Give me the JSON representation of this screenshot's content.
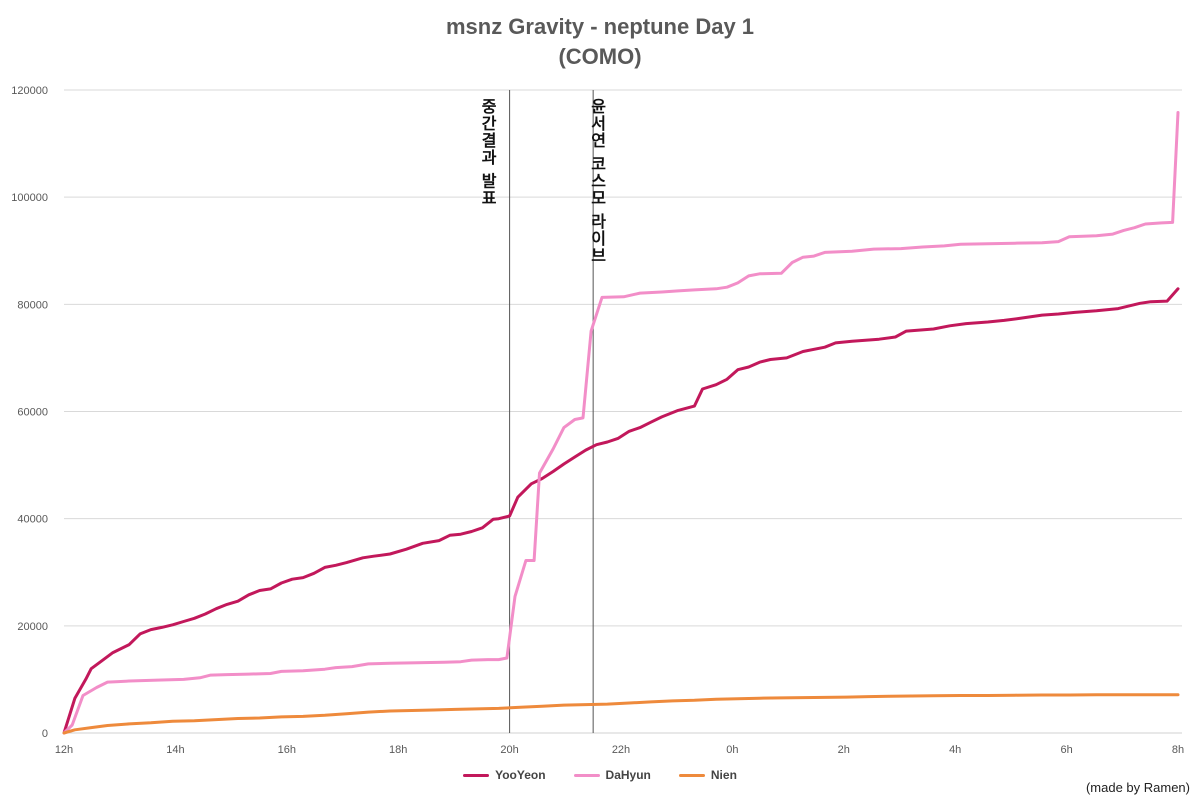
{
  "chart_data": {
    "type": "line",
    "title_lines": [
      "msnz Gravity - neptune Day 1",
      "(COMO)"
    ],
    "xlabel": "",
    "ylabel": "",
    "x_range_hours": [
      0,
      20
    ],
    "x_ticks": [
      {
        "h": 0,
        "label": "12h"
      },
      {
        "h": 2,
        "label": "14h"
      },
      {
        "h": 4,
        "label": "16h"
      },
      {
        "h": 6,
        "label": "18h"
      },
      {
        "h": 8,
        "label": "20h"
      },
      {
        "h": 10,
        "label": "22h"
      },
      {
        "h": 12,
        "label": "0h"
      },
      {
        "h": 14,
        "label": "2h"
      },
      {
        "h": 16,
        "label": "4h"
      },
      {
        "h": 18,
        "label": "6h"
      },
      {
        "h": 20,
        "label": "8h"
      }
    ],
    "ylim": [
      0,
      120000
    ],
    "y_ticks": [
      0,
      20000,
      40000,
      60000,
      80000,
      100000,
      120000
    ],
    "grid": true,
    "legend_position": "bottom",
    "annotations": [
      {
        "h": 8.0,
        "text": "중간결과 발표"
      },
      {
        "h": 9.5,
        "text": "윤서연 코스모 라이브"
      }
    ],
    "series": [
      {
        "name": "YooYeon",
        "color": "#C2185B",
        "points": [
          [
            0,
            0
          ],
          [
            0.2,
            6500
          ],
          [
            0.4,
            10000
          ],
          [
            0.5,
            12000
          ],
          [
            0.7,
            13500
          ],
          [
            0.9,
            15000
          ],
          [
            1.2,
            16500
          ],
          [
            1.4,
            18500
          ],
          [
            1.6,
            19300
          ],
          [
            1.8,
            19700
          ],
          [
            2.0,
            20200
          ],
          [
            2.2,
            20800
          ],
          [
            2.4,
            21400
          ],
          [
            2.6,
            22200
          ],
          [
            2.8,
            23200
          ],
          [
            3.0,
            24000
          ],
          [
            3.2,
            24600
          ],
          [
            3.4,
            25800
          ],
          [
            3.6,
            26600
          ],
          [
            3.8,
            26900
          ],
          [
            4.0,
            28000
          ],
          [
            4.2,
            28700
          ],
          [
            4.4,
            29000
          ],
          [
            4.6,
            29800
          ],
          [
            4.8,
            30900
          ],
          [
            5.0,
            31300
          ],
          [
            5.2,
            31800
          ],
          [
            5.5,
            32700
          ],
          [
            5.7,
            33000
          ],
          [
            6.0,
            33400
          ],
          [
            6.3,
            34300
          ],
          [
            6.6,
            35400
          ],
          [
            6.9,
            35900
          ],
          [
            7.1,
            36900
          ],
          [
            7.3,
            37100
          ],
          [
            7.5,
            37600
          ],
          [
            7.7,
            38300
          ],
          [
            7.9,
            39900
          ],
          [
            8.0,
            40000
          ],
          [
            8.2,
            40500
          ],
          [
            8.35,
            44000
          ],
          [
            8.6,
            46500
          ],
          [
            8.8,
            47500
          ],
          [
            9.0,
            48800
          ],
          [
            9.2,
            50200
          ],
          [
            9.4,
            51500
          ],
          [
            9.6,
            52800
          ],
          [
            9.8,
            53800
          ],
          [
            10.0,
            54300
          ],
          [
            10.2,
            55000
          ],
          [
            10.4,
            56300
          ],
          [
            10.6,
            57000
          ],
          [
            10.8,
            58000
          ],
          [
            11.0,
            59000
          ],
          [
            11.3,
            60200
          ],
          [
            11.6,
            61000
          ],
          [
            11.75,
            64200
          ],
          [
            12.0,
            65000
          ],
          [
            12.2,
            66000
          ],
          [
            12.4,
            67800
          ],
          [
            12.6,
            68300
          ],
          [
            12.8,
            69200
          ],
          [
            13.0,
            69700
          ],
          [
            13.3,
            70000
          ],
          [
            13.6,
            71200
          ],
          [
            14.0,
            72000
          ],
          [
            14.2,
            72800
          ],
          [
            14.5,
            73100
          ],
          [
            15.0,
            73500
          ],
          [
            15.3,
            73900
          ],
          [
            15.5,
            75000
          ],
          [
            16.0,
            75400
          ],
          [
            16.3,
            76000
          ],
          [
            16.6,
            76400
          ],
          [
            17.0,
            76700
          ],
          [
            17.3,
            77000
          ],
          [
            17.6,
            77400
          ],
          [
            18.0,
            78000
          ],
          [
            18.3,
            78200
          ],
          [
            18.6,
            78500
          ],
          [
            19.0,
            78800
          ],
          [
            19.4,
            79200
          ],
          [
            19.6,
            79700
          ],
          [
            19.8,
            80200
          ],
          [
            20.0,
            80500
          ],
          [
            20.3,
            80600
          ],
          [
            20.5,
            82900
          ]
        ]
      },
      {
        "name": "DaHyun",
        "color": "#F28EC8",
        "points": [
          [
            0,
            0
          ],
          [
            0.15,
            1500
          ],
          [
            0.35,
            7000
          ],
          [
            0.6,
            8500
          ],
          [
            0.8,
            9500
          ],
          [
            1.0,
            9600
          ],
          [
            1.2,
            9700
          ],
          [
            1.5,
            9800
          ],
          [
            1.8,
            9900
          ],
          [
            2.2,
            10000
          ],
          [
            2.5,
            10300
          ],
          [
            2.7,
            10800
          ],
          [
            3.0,
            10900
          ],
          [
            3.4,
            11000
          ],
          [
            3.8,
            11100
          ],
          [
            4.0,
            11500
          ],
          [
            4.4,
            11600
          ],
          [
            4.8,
            11900
          ],
          [
            5.0,
            12200
          ],
          [
            5.3,
            12400
          ],
          [
            5.6,
            12900
          ],
          [
            6.0,
            13000
          ],
          [
            6.5,
            13100
          ],
          [
            7.0,
            13200
          ],
          [
            7.3,
            13300
          ],
          [
            7.5,
            13600
          ],
          [
            7.8,
            13700
          ],
          [
            8.0,
            13700
          ],
          [
            8.15,
            14000
          ],
          [
            8.3,
            25500
          ],
          [
            8.5,
            32200
          ],
          [
            8.65,
            32200
          ],
          [
            8.75,
            48500
          ],
          [
            9.0,
            53000
          ],
          [
            9.2,
            57000
          ],
          [
            9.4,
            58500
          ],
          [
            9.55,
            58800
          ],
          [
            9.7,
            75000
          ],
          [
            9.9,
            81300
          ],
          [
            10.3,
            81400
          ],
          [
            10.6,
            82100
          ],
          [
            11.0,
            82300
          ],
          [
            11.3,
            82500
          ],
          [
            11.6,
            82700
          ],
          [
            12.0,
            82900
          ],
          [
            12.2,
            83200
          ],
          [
            12.4,
            84000
          ],
          [
            12.6,
            85300
          ],
          [
            12.8,
            85700
          ],
          [
            13.2,
            85800
          ],
          [
            13.4,
            87800
          ],
          [
            13.6,
            88800
          ],
          [
            13.8,
            89000
          ],
          [
            14.0,
            89700
          ],
          [
            14.5,
            89900
          ],
          [
            14.9,
            90300
          ],
          [
            15.4,
            90400
          ],
          [
            15.8,
            90700
          ],
          [
            16.2,
            90900
          ],
          [
            16.5,
            91200
          ],
          [
            17.0,
            91300
          ],
          [
            17.5,
            91400
          ],
          [
            18.0,
            91500
          ],
          [
            18.3,
            91700
          ],
          [
            18.5,
            92600
          ],
          [
            19.0,
            92800
          ],
          [
            19.3,
            93100
          ],
          [
            19.5,
            93800
          ],
          [
            19.7,
            94300
          ],
          [
            19.9,
            95000
          ],
          [
            20.2,
            95200
          ],
          [
            20.4,
            95300
          ],
          [
            20.5,
            115800
          ]
        ]
      },
      {
        "name": "Nien",
        "color": "#EE8A3C",
        "points": [
          [
            0,
            0
          ],
          [
            0.2,
            600
          ],
          [
            0.5,
            1000
          ],
          [
            0.8,
            1400
          ],
          [
            1.2,
            1700
          ],
          [
            1.6,
            1900
          ],
          [
            2.0,
            2200
          ],
          [
            2.4,
            2300
          ],
          [
            2.8,
            2500
          ],
          [
            3.2,
            2700
          ],
          [
            3.6,
            2800
          ],
          [
            4.0,
            3000
          ],
          [
            4.4,
            3100
          ],
          [
            4.8,
            3300
          ],
          [
            5.2,
            3600
          ],
          [
            5.6,
            3900
          ],
          [
            6.0,
            4100
          ],
          [
            6.4,
            4200
          ],
          [
            6.8,
            4300
          ],
          [
            7.2,
            4400
          ],
          [
            7.6,
            4500
          ],
          [
            8.0,
            4600
          ],
          [
            8.4,
            4800
          ],
          [
            8.8,
            5000
          ],
          [
            9.2,
            5200
          ],
          [
            9.6,
            5300
          ],
          [
            10.0,
            5400
          ],
          [
            10.4,
            5600
          ],
          [
            10.8,
            5800
          ],
          [
            11.2,
            6000
          ],
          [
            11.6,
            6100
          ],
          [
            12.0,
            6300
          ],
          [
            12.4,
            6400
          ],
          [
            12.8,
            6500
          ],
          [
            13.2,
            6550
          ],
          [
            13.6,
            6600
          ],
          [
            14.0,
            6650
          ],
          [
            14.4,
            6700
          ],
          [
            14.8,
            6800
          ],
          [
            15.2,
            6850
          ],
          [
            15.6,
            6900
          ],
          [
            16.0,
            6950
          ],
          [
            16.5,
            7000
          ],
          [
            17.0,
            7000
          ],
          [
            17.5,
            7050
          ],
          [
            18.0,
            7100
          ],
          [
            18.5,
            7100
          ],
          [
            19.0,
            7150
          ],
          [
            19.5,
            7150
          ],
          [
            20.0,
            7150
          ],
          [
            20.5,
            7150
          ]
        ]
      }
    ]
  },
  "credit": "(made by Ramen)"
}
